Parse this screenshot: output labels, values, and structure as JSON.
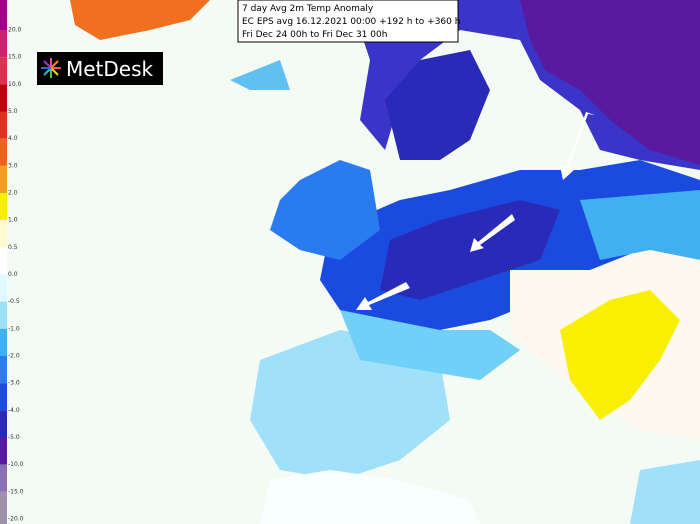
{
  "header": {
    "lines": [
      "7 day Avg 2m Temp Anomaly",
      "EC EPS avg 16.12.2021 00:00 +192 h to +360 h",
      "Fri Dec 24 00h to Fri Dec 31 00h"
    ]
  },
  "logo": {
    "text": "MetDesk"
  },
  "legend": {
    "labels": [
      "20.0",
      "15.0",
      "10.0",
      "5.0",
      "4.0",
      "3.0",
      "2.0",
      "1.0",
      "0.5",
      "0.0",
      "-0.5",
      "-1.0",
      "-2.0",
      "-3.0",
      "-4.0",
      "-5.0",
      "-10.0",
      "-15.0",
      "-20.0"
    ]
  }
}
